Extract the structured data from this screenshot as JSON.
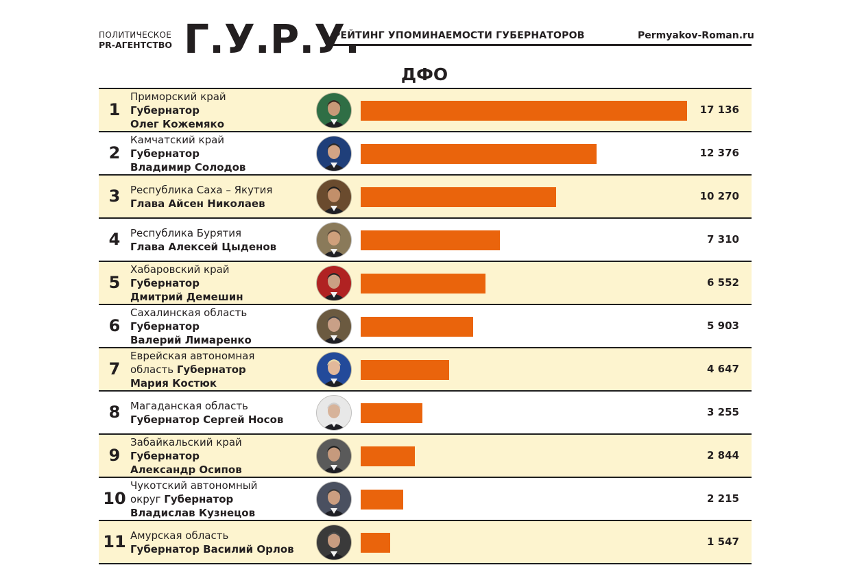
{
  "header": {
    "agency_line1": "ПОЛИТИЧЕСКОЕ",
    "agency_line2": "PR-АГЕНТСТВО",
    "logo": "Г.У.Р.У.",
    "rating_title": "РЕЙТИНГ УПОМИНАЕМОСТИ ГУБЕРНАТОРОВ",
    "site": "Permyakov-Roman.ru"
  },
  "chart_data": {
    "type": "bar",
    "title": "ДФО",
    "orientation": "horizontal",
    "accent_color": "#ea640c",
    "row_fill_color": "#fdf4cf",
    "rows": [
      {
        "rank": "1",
        "region": "Приморский край",
        "person_inline": "",
        "person_lines": [
          "Губернатор",
          "Олег Кожемяко"
        ],
        "value": 17136,
        "value_label": "17 136",
        "shaded": true
      },
      {
        "rank": "2",
        "region": "Камчатский край",
        "person_inline": "",
        "person_lines": [
          "Губернатор",
          "Владимир Солодов"
        ],
        "value": 12376,
        "value_label": "12 376",
        "shaded": false
      },
      {
        "rank": "3",
        "region": "Республика Саха – Якутия",
        "person_inline": "",
        "person_lines": [
          "Глава Айсен Николаев"
        ],
        "value": 10270,
        "value_label": "10 270",
        "shaded": true
      },
      {
        "rank": "4",
        "region": "Республика Бурятия",
        "person_inline": "",
        "person_lines": [
          "Глава Алексей Цыденов"
        ],
        "value": 7310,
        "value_label": "7 310",
        "shaded": false
      },
      {
        "rank": "5",
        "region": "Хабаровский край",
        "person_inline": "",
        "person_lines": [
          "Губернатор",
          "Дмитрий Демешин"
        ],
        "value": 6552,
        "value_label": "6 552",
        "shaded": true
      },
      {
        "rank": "6",
        "region": "Сахалинская область",
        "person_inline": "",
        "person_lines": [
          "Губернатор",
          "Валерий Лимаренко"
        ],
        "value": 5903,
        "value_label": "5 903",
        "shaded": false
      },
      {
        "rank": "7",
        "region": "Еврейская автономная",
        "region_line2": "область",
        "person_inline": "Губернатор",
        "person_lines": [
          "Мария Костюк"
        ],
        "value": 4647,
        "value_label": "4 647",
        "shaded": true
      },
      {
        "rank": "8",
        "region": "Магаданская область",
        "person_inline": "",
        "person_lines": [
          "Губернатор Сергей Носов"
        ],
        "value": 3255,
        "value_label": "3 255",
        "shaded": false
      },
      {
        "rank": "9",
        "region": "Забайкальский край",
        "person_inline": "",
        "person_lines": [
          "Губернатор",
          "Александр Осипов"
        ],
        "value": 2844,
        "value_label": "2 844",
        "shaded": true
      },
      {
        "rank": "10",
        "region": "Чукотский автономный",
        "region_line2": "округ",
        "person_inline": "Губернатор",
        "person_lines": [
          "Владислав Кузнецов"
        ],
        "value": 2215,
        "value_label": "2 215",
        "shaded": false
      },
      {
        "rank": "11",
        "region": "Амурская область",
        "person_inline": "",
        "person_lines": [
          "Губернатор Василий Орлов"
        ],
        "value": 1547,
        "value_label": "1 547",
        "shaded": true
      }
    ],
    "xlim": [
      0,
      17136
    ]
  }
}
